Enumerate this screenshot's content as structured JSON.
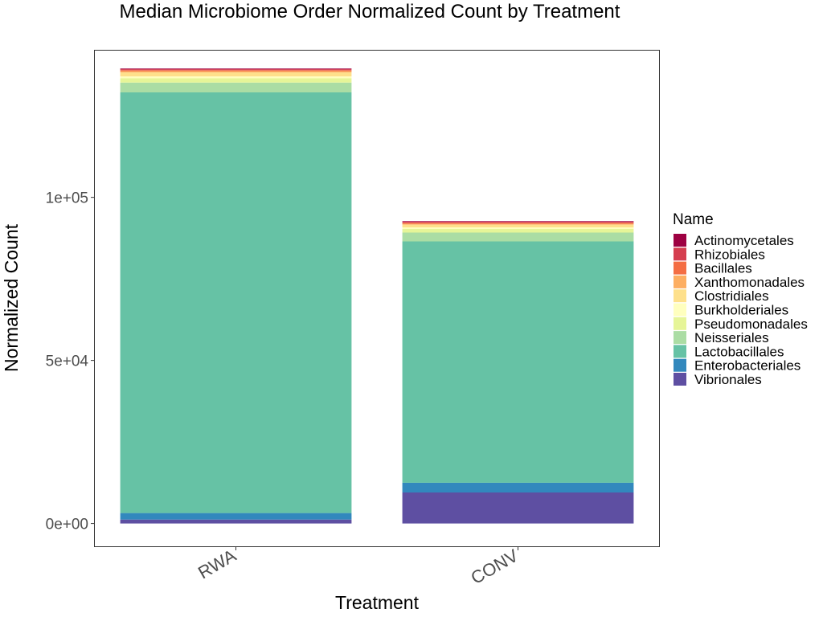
{
  "chart_data": {
    "type": "bar",
    "stacked": true,
    "title": "Median Microbiome Order Normalized Count by Treatment",
    "xlabel": "Treatment",
    "ylabel": "Normalized Count",
    "categories": [
      "RWA",
      "CONV"
    ],
    "ylim": [
      -7000,
      145000
    ],
    "yticks": [
      0,
      50000,
      100000
    ],
    "ytick_labels": [
      "0e+00",
      "5e+04",
      "1e+05"
    ],
    "legend_title": "Name",
    "legend_position": "right",
    "grid": false,
    "series": [
      {
        "name": "Vibrionales",
        "color": "#5E4FA2",
        "values": [
          1200,
          9500
        ]
      },
      {
        "name": "Enterobacteriales",
        "color": "#3288BD",
        "values": [
          2000,
          3000
        ]
      },
      {
        "name": "Lactobacillales",
        "color": "#66C2A5",
        "values": [
          129000,
          74000
        ]
      },
      {
        "name": "Neisseriales",
        "color": "#ABDDA4",
        "values": [
          3000,
          2700
        ]
      },
      {
        "name": "Pseudomonadales",
        "color": "#E6F598",
        "values": [
          1300,
          1100
        ]
      },
      {
        "name": "Burkholderiales",
        "color": "#FFFFBF",
        "values": [
          600,
          500
        ]
      },
      {
        "name": "Clostridiales",
        "color": "#FEE08B",
        "values": [
          1200,
          800
        ]
      },
      {
        "name": "Xanthomonadales",
        "color": "#FDAE61",
        "values": [
          400,
          300
        ]
      },
      {
        "name": "Bacillales",
        "color": "#F46D43",
        "values": [
          300,
          300
        ]
      },
      {
        "name": "Rhizobiales",
        "color": "#D53E4F",
        "values": [
          300,
          300
        ]
      },
      {
        "name": "Actinomycetales",
        "color": "#9E0142",
        "values": [
          200,
          200
        ]
      }
    ],
    "legend_order": [
      "Actinomycetales",
      "Rhizobiales",
      "Bacillales",
      "Xanthomonadales",
      "Clostridiales",
      "Burkholderiales",
      "Pseudomonadales",
      "Neisseriales",
      "Lactobacillales",
      "Enterobacteriales",
      "Vibrionales"
    ]
  }
}
